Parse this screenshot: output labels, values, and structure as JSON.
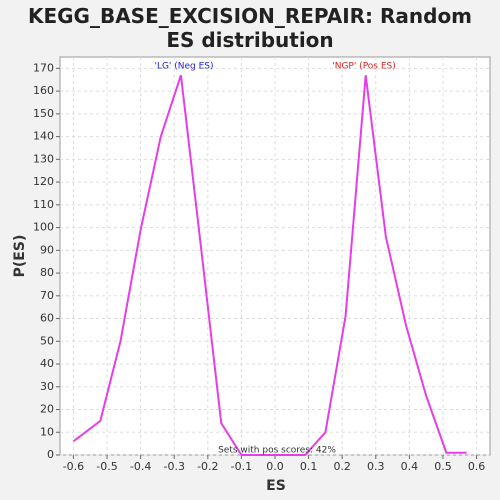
{
  "chart_data": {
    "type": "line",
    "title": "KEGG_BASE_EXCISION_REPAIR: Random ES distribution",
    "x_label": "ES",
    "y_label": "P(ES)",
    "x": [
      -0.6,
      -0.52,
      -0.46,
      -0.4,
      -0.34,
      -0.28,
      -0.22,
      -0.16,
      -0.1,
      -0.04,
      0.03,
      0.09,
      0.15,
      0.21,
      0.27,
      0.33,
      0.39,
      0.45,
      0.51,
      0.57
    ],
    "series": [
      {
        "color": "#e63ee6",
        "values": [
          6,
          15,
          50,
          99,
          140,
          167,
          91,
          14,
          0,
          0,
          0,
          0,
          10,
          61,
          167,
          96,
          57,
          26,
          1,
          1
        ]
      }
    ],
    "xlim": [
      -0.64,
      0.64
    ],
    "xticks": [
      -0.6,
      -0.5,
      -0.4,
      -0.3,
      -0.2,
      -0.1,
      {
        "value": 0,
        "label": "0.0"
      },
      0.1,
      0.2,
      0.3,
      0.4,
      0.5,
      0.6
    ],
    "ylim": [
      0,
      175
    ],
    "yticks": [
      0,
      10,
      20,
      30,
      40,
      50,
      60,
      70,
      80,
      90,
      100,
      110,
      120,
      130,
      140,
      150,
      160,
      170
    ],
    "grid": true,
    "annotations": [
      {
        "text": "'LG' (Neg ES)",
        "color": "#2222dd"
      },
      {
        "text": "'NGP' (Pos ES)",
        "color": "#dd2222"
      },
      {
        "text": "Sets with pos scores: 42%",
        "color": "#333333"
      }
    ]
  }
}
